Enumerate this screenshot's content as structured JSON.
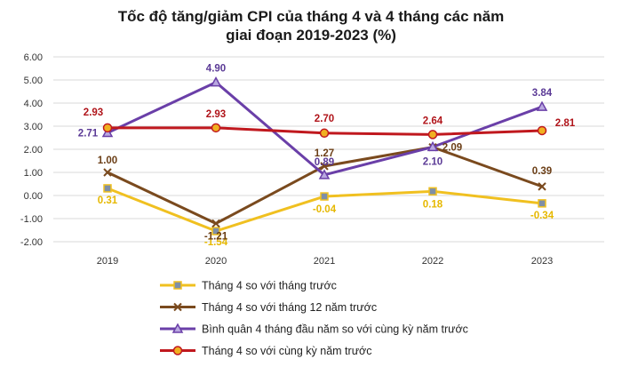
{
  "chart_data": {
    "type": "line",
    "title_line1": "Tốc độ tăng/giảm CPI của tháng 4 và 4 tháng các năm",
    "title_line2": "giai đoạn 2019-2023 (%)",
    "categories": [
      "2019",
      "2020",
      "2021",
      "2022",
      "2023"
    ],
    "ylim": [
      -2,
      6
    ],
    "yticks": [
      "-2.00",
      "-1.00",
      "0.00",
      "1.00",
      "2.00",
      "3.00",
      "4.00",
      "5.00",
      "6.00"
    ],
    "grid": "horizontal",
    "legend_position": "bottom",
    "series": [
      {
        "name": "Tháng 4 so với tháng trước",
        "color": "#f0c020",
        "marker": "square",
        "values": [
          0.31,
          -1.54,
          -0.04,
          0.18,
          -0.34
        ],
        "labels": [
          "0.31",
          "-1.54",
          "-0.04",
          "0.18",
          "-0.34"
        ]
      },
      {
        "name": "Tháng 4 so với tháng 12 năm trước",
        "color": "#7a4a1e",
        "marker": "x",
        "values": [
          1.0,
          -1.21,
          1.27,
          2.09,
          0.39
        ],
        "labels": [
          "1.00",
          "-1.21",
          "1.27",
          "2.09",
          "0.39"
        ]
      },
      {
        "name": "Bình quân 4 tháng đầu năm so với cùng kỳ năm trước",
        "color": "#6a3fa8",
        "marker": "triangle",
        "values": [
          2.71,
          4.9,
          0.89,
          2.1,
          3.84
        ],
        "labels": [
          "2.71",
          "4.90",
          "0.89",
          "2.10",
          "3.84"
        ]
      },
      {
        "name": "Tháng 4 so với cùng kỳ năm trước",
        "color": "#c0181e",
        "marker": "circle",
        "values": [
          2.93,
          2.93,
          2.7,
          2.64,
          2.81
        ],
        "labels": [
          "2.93",
          "2.93",
          "2.70",
          "2.64",
          "2.81"
        ]
      }
    ]
  }
}
